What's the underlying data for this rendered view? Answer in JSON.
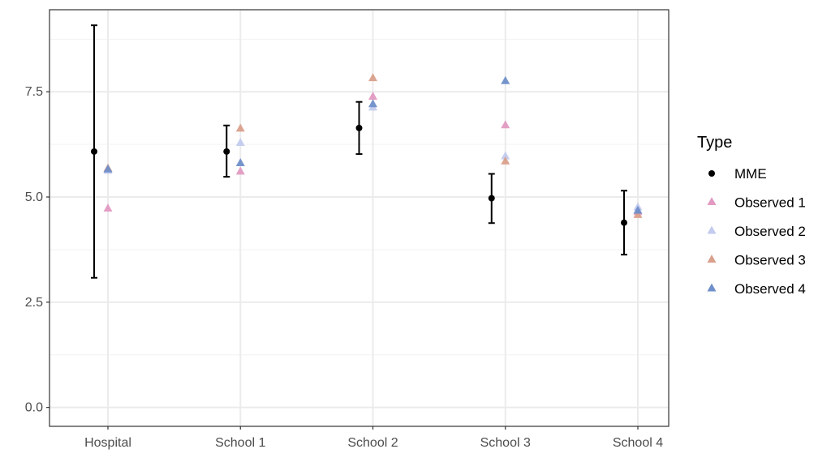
{
  "chart_data": {
    "type": "scatter",
    "categories": [
      "Hospital",
      "School 1",
      "School 2",
      "School 3",
      "School 4"
    ],
    "yticks": [
      0.0,
      2.5,
      5.0,
      7.5
    ],
    "ytick_labels": [
      "0.0",
      "2.5",
      "5.0",
      "7.5"
    ],
    "ylim": [
      -0.45,
      9.45
    ],
    "xlabel": "",
    "ylabel": "",
    "grid": true,
    "legend": {
      "title": "Type",
      "placement": "right"
    },
    "mme": {
      "name": "MME",
      "color": "#000000",
      "points": [
        {
          "category": "Hospital",
          "value": 6.08,
          "low": 3.08,
          "high": 9.08
        },
        {
          "category": "School 1",
          "value": 6.08,
          "low": 5.48,
          "high": 6.7
        },
        {
          "category": "School 2",
          "value": 6.64,
          "low": 6.02,
          "high": 7.26
        },
        {
          "category": "School 3",
          "value": 4.97,
          "low": 4.38,
          "high": 5.55
        },
        {
          "category": "School 4",
          "value": 4.39,
          "low": 3.63,
          "high": 5.15
        }
      ]
    },
    "series": [
      {
        "name": "Observed 1",
        "color": "#e29ac2",
        "values": [
          4.72,
          5.6,
          7.38,
          6.7,
          4.64
        ]
      },
      {
        "name": "Observed 2",
        "color": "#c3cbee",
        "values": [
          5.62,
          6.28,
          7.12,
          5.96,
          4.75
        ]
      },
      {
        "name": "Observed 3",
        "color": "#d9a08c",
        "values": [
          5.67,
          6.62,
          7.82,
          5.84,
          4.57
        ]
      },
      {
        "name": "Observed 4",
        "color": "#6f8fca",
        "values": [
          5.65,
          5.8,
          7.2,
          7.75,
          4.67
        ]
      }
    ]
  }
}
